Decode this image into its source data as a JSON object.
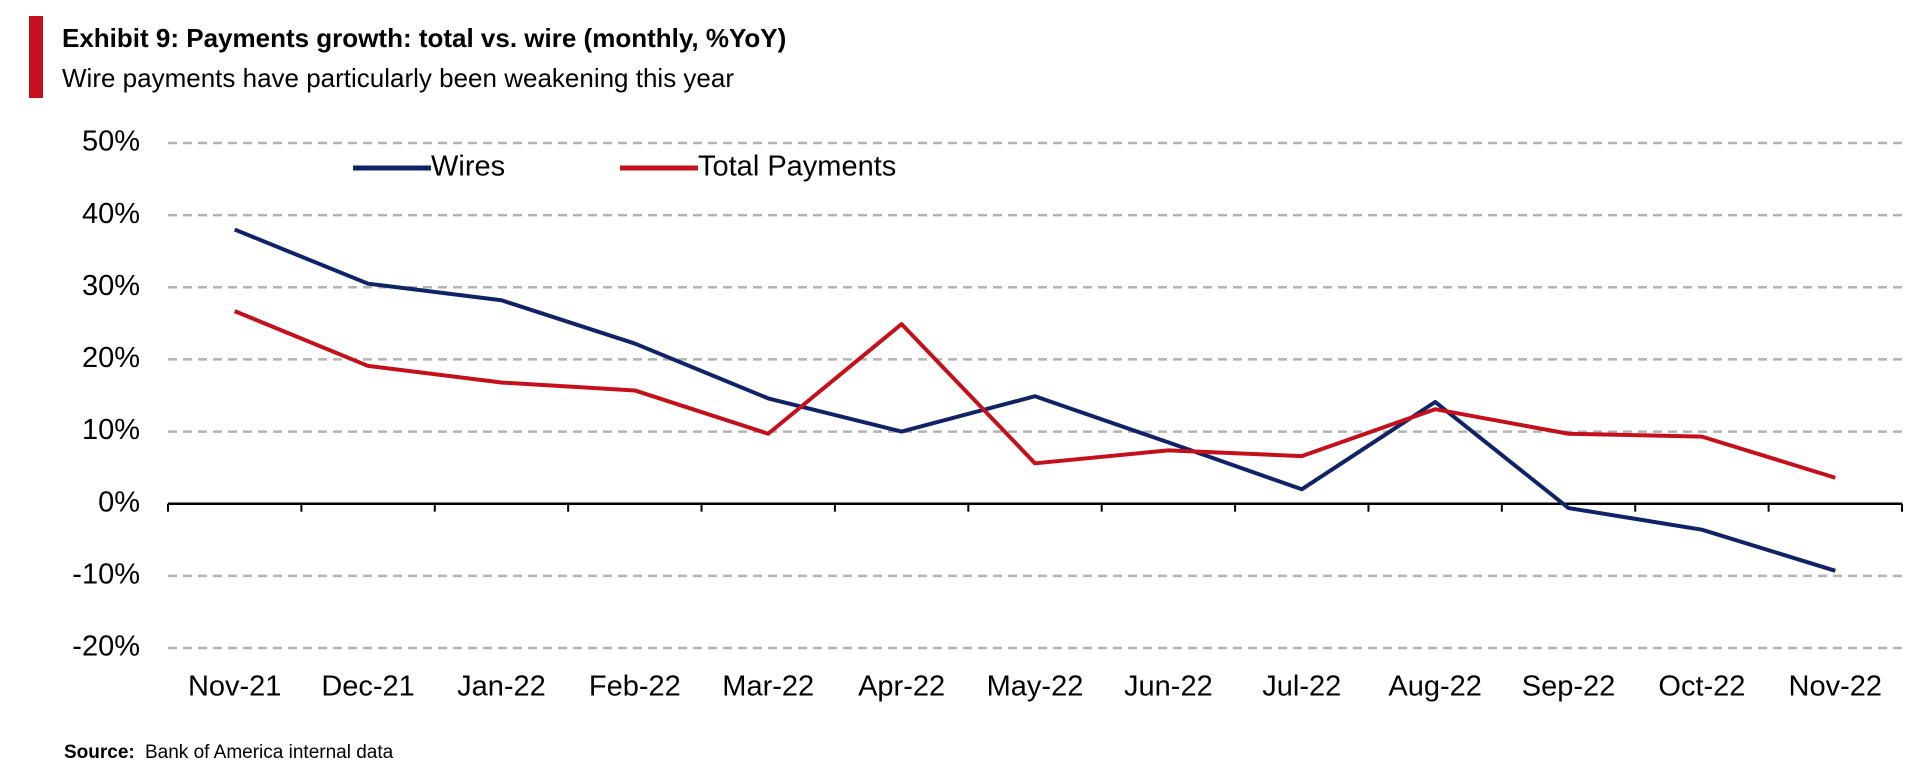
{
  "chart_data": {
    "type": "line",
    "title": "Exhibit 9: Payments growth: total vs. wire (monthly, %YoY)",
    "subtitle": "Wire payments have particularly been weakening this year",
    "source_label": "Source:",
    "source": "Bank of America internal data",
    "categories": [
      "Nov-21",
      "Dec-21",
      "Jan-22",
      "Feb-22",
      "Mar-22",
      "Apr-22",
      "May-22",
      "Jun-22",
      "Jul-22",
      "Aug-22",
      "Sep-22",
      "Oct-22",
      "Nov-22"
    ],
    "series": [
      {
        "name": "Wires",
        "color": "#0f2366",
        "values": [
          38,
          30.5,
          28.2,
          22.2,
          14.6,
          10,
          14.9,
          8.5,
          2,
          14.1,
          -0.6,
          -3.6,
          -9.3
        ]
      },
      {
        "name": "Total Payments",
        "color": "#c3101a",
        "values": [
          26.7,
          19.1,
          16.8,
          15.7,
          9.7,
          24.9,
          5.6,
          7.4,
          6.6,
          13.1,
          9.7,
          9.3,
          3.6
        ]
      }
    ],
    "ylim": [
      -20,
      50
    ],
    "yticks": [
      {
        "value": -20,
        "label": "-20%"
      },
      {
        "value": -10,
        "label": "-10%"
      },
      {
        "value": 0,
        "label": "0%"
      },
      {
        "value": 10,
        "label": "10%"
      },
      {
        "value": 20,
        "label": "20%"
      },
      {
        "value": 30,
        "label": "30%"
      },
      {
        "value": 40,
        "label": "40%"
      },
      {
        "value": 50,
        "label": "50%"
      }
    ],
    "grid": true
  }
}
